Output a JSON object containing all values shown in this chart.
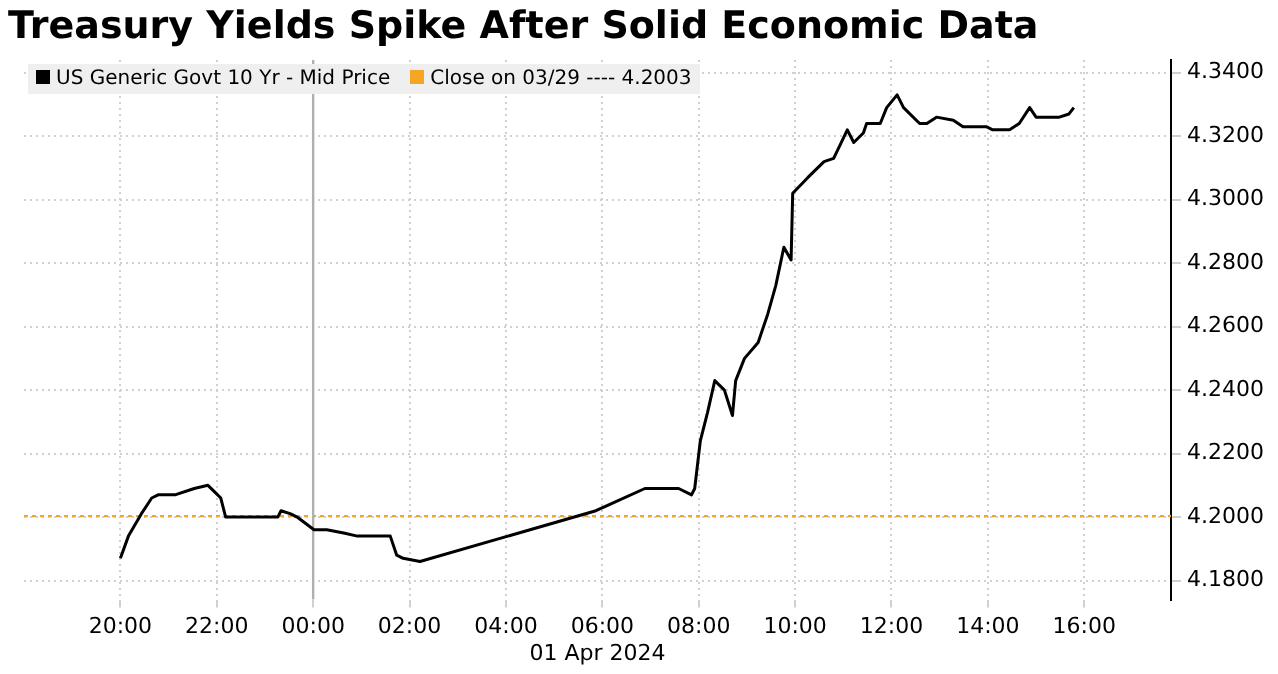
{
  "chart_data": {
    "type": "line",
    "title": "Treasury Yields Spike After Solid Economic Data",
    "series": [
      {
        "name": "US Generic Govt 10 Yr - Mid Price",
        "color": "#000000",
        "x": [
          "2024-03-31T20:00",
          "2024-03-31T20:10",
          "2024-03-31T20:26",
          "2024-03-31T20:39",
          "2024-03-31T20:47",
          "2024-03-31T21:08",
          "2024-03-31T21:32",
          "2024-03-31T21:49",
          "2024-03-31T21:57",
          "2024-03-31T22:05",
          "2024-03-31T22:11",
          "2024-03-31T23:16",
          "2024-03-31T23:20",
          "2024-03-31T23:32",
          "2024-03-31T23:40",
          "2024-04-01T00:01",
          "2024-04-01T00:17",
          "2024-04-01T00:38",
          "2024-04-01T00:55",
          "2024-04-01T01:36",
          "2024-04-01T01:44",
          "2024-04-01T01:52",
          "2024-04-01T02:13",
          "2024-04-01T05:52",
          "2024-04-01T06:53",
          "2024-04-01T07:35",
          "2024-04-01T07:51",
          "2024-04-01T07:55",
          "2024-04-01T08:02",
          "2024-04-01T08:11",
          "2024-04-01T08:20",
          "2024-04-01T08:32",
          "2024-04-01T08:42",
          "2024-04-01T08:46",
          "2024-04-01T08:57",
          "2024-04-01T09:14",
          "2024-04-01T09:26",
          "2024-04-01T09:36",
          "2024-04-01T09:46",
          "2024-04-01T09:55",
          "2024-04-01T09:57",
          "2024-04-01T10:16",
          "2024-04-01T10:36",
          "2024-04-01T10:48",
          "2024-04-01T11:05",
          "2024-04-01T11:13",
          "2024-04-01T11:25",
          "2024-04-01T11:29",
          "2024-04-01T11:46",
          "2024-04-01T11:54",
          "2024-04-01T12:07",
          "2024-04-01T12:15",
          "2024-04-01T12:35",
          "2024-04-01T12:44",
          "2024-04-01T12:56",
          "2024-04-01T13:17",
          "2024-04-01T13:29",
          "2024-04-01T13:58",
          "2024-04-01T14:06",
          "2024-04-01T14:27",
          "2024-04-01T14:39",
          "2024-04-01T14:52",
          "2024-04-01T15:00",
          "2024-04-01T15:29",
          "2024-04-01T15:41",
          "2024-04-01T15:47"
        ],
        "values": [
          4.187,
          4.194,
          4.201,
          4.206,
          4.207,
          4.207,
          4.209,
          4.21,
          4.208,
          4.206,
          4.2,
          4.2,
          4.202,
          4.201,
          4.2,
          4.196,
          4.196,
          4.195,
          4.194,
          4.194,
          4.188,
          4.187,
          4.186,
          4.202,
          4.209,
          4.209,
          4.207,
          4.209,
          4.224,
          4.233,
          4.243,
          4.24,
          4.232,
          4.243,
          4.25,
          4.255,
          4.264,
          4.273,
          4.285,
          4.281,
          4.302,
          4.307,
          4.312,
          4.313,
          4.322,
          4.318,
          4.321,
          4.324,
          4.324,
          4.329,
          4.333,
          4.329,
          4.324,
          4.324,
          4.326,
          4.325,
          4.323,
          4.323,
          4.322,
          4.322,
          4.324,
          4.329,
          4.326,
          4.326,
          4.327,
          4.329
        ]
      }
    ],
    "xlim": [
      "2024-03-31T18:00",
      "2024-04-01T17:48"
    ],
    "xticks": [
      {
        "value": "2024-03-31T20:00",
        "label": "20:00"
      },
      {
        "value": "2024-03-31T22:00",
        "label": "22:00"
      },
      {
        "value": "2024-04-01T00:00",
        "label": "00:00"
      },
      {
        "value": "2024-04-01T02:00",
        "label": "02:00"
      },
      {
        "value": "2024-04-01T04:00",
        "label": "04:00"
      },
      {
        "value": "2024-04-01T06:00",
        "label": "06:00"
      },
      {
        "value": "2024-04-01T08:00",
        "label": "08:00"
      },
      {
        "value": "2024-04-01T10:00",
        "label": "10:00"
      },
      {
        "value": "2024-04-01T12:00",
        "label": "12:00"
      },
      {
        "value": "2024-04-01T14:00",
        "label": "14:00"
      },
      {
        "value": "2024-04-01T16:00",
        "label": "16:00"
      }
    ],
    "ylim": [
      4.174,
      4.344
    ],
    "yticks": [
      {
        "value": 4.18,
        "label": "4.1800"
      },
      {
        "value": 4.2,
        "label": "4.2000"
      },
      {
        "value": 4.22,
        "label": "4.2200"
      },
      {
        "value": 4.24,
        "label": "4.2400"
      },
      {
        "value": 4.26,
        "label": "4.2600"
      },
      {
        "value": 4.28,
        "label": "4.2800"
      },
      {
        "value": 4.3,
        "label": "4.3000"
      },
      {
        "value": 4.32,
        "label": "4.3200"
      },
      {
        "value": 4.34,
        "label": "4.3400"
      }
    ],
    "ref_lines": [
      {
        "axis": "y",
        "value": 4.2003,
        "label": "Close on 03/29 ---- 4.2003",
        "color": "#f5a623",
        "line_style": "dotted"
      },
      {
        "axis": "x",
        "value": "2024-04-01T00:00",
        "color": "#b0b0b0",
        "line_style": "solid"
      }
    ],
    "annotations": [
      "01 Apr 2024"
    ],
    "grid": true,
    "legend": "top left",
    "line_style": "solid",
    "marker": "none"
  }
}
